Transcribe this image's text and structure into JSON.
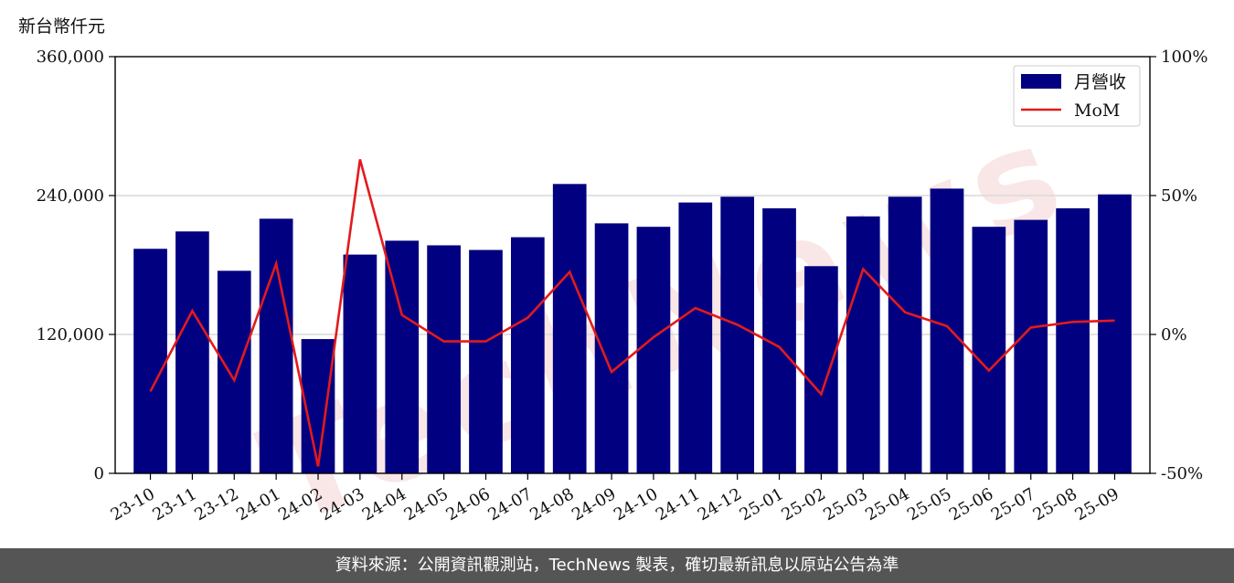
{
  "unit_label": "新台幣仟元",
  "footer_text": "資料來源：公開資訊觀測站，TechNews 製表，確切最新訊息以原站公告為準",
  "colors": {
    "bar": "#000080",
    "line": "#e31a1c",
    "grid": "#d9d9d9",
    "watermark": "#f3c9c9"
  },
  "chart_data": {
    "type": "bar",
    "categories": [
      "23-10",
      "23-11",
      "23-12",
      "24-01",
      "24-02",
      "24-03",
      "24-04",
      "24-05",
      "24-06",
      "24-07",
      "24-08",
      "24-09",
      "24-10",
      "24-11",
      "24-12",
      "25-01",
      "25-02",
      "25-03",
      "25-04",
      "25-05",
      "25-06",
      "25-07",
      "25-08",
      "25-09"
    ],
    "series": [
      {
        "name": "月營收",
        "axis": "left",
        "type": "bar",
        "values": [
          194000,
          209000,
          175000,
          220000,
          116000,
          189000,
          201000,
          197000,
          193000,
          204000,
          250000,
          216000,
          213000,
          234000,
          239000,
          229000,
          179000,
          222000,
          239000,
          246000,
          213000,
          219000,
          229000,
          241000
        ]
      },
      {
        "name": "MoM",
        "axis": "right",
        "type": "line",
        "values": [
          -20.5,
          8.5,
          -16.5,
          25.5,
          -47.5,
          63.0,
          7.0,
          -2.5,
          -2.5,
          6.0,
          22.5,
          -13.5,
          -1.0,
          9.5,
          3.5,
          -4.5,
          -21.5,
          23.5,
          8.0,
          3.0,
          -13.0,
          2.5,
          4.5,
          5.0
        ]
      }
    ],
    "y_left": {
      "ylim": [
        0,
        360000
      ],
      "ticks": [
        0,
        120000,
        240000,
        360000
      ],
      "tick_labels": [
        "0",
        "120,000",
        "240,000",
        "360,000"
      ]
    },
    "y_right": {
      "ylim": [
        -50,
        100
      ],
      "ticks": [
        -50,
        0,
        50,
        100
      ],
      "tick_labels": [
        "-50%",
        "0%",
        "50%",
        "100%"
      ]
    },
    "grid": true,
    "legend": {
      "placement": "top-right",
      "entries": [
        "月營收",
        "MoM"
      ]
    }
  }
}
